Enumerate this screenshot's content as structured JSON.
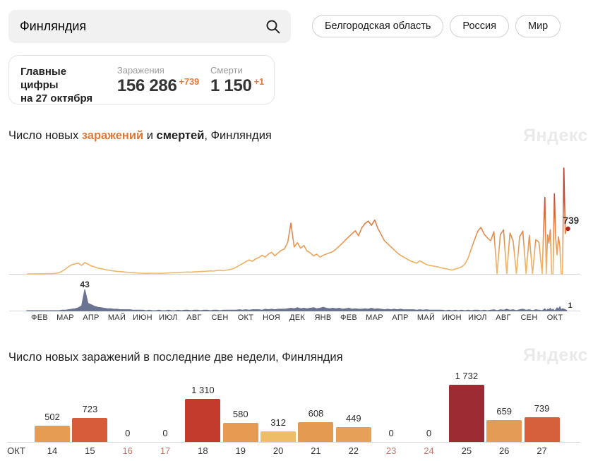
{
  "search": {
    "value": "Финляндия"
  },
  "region_buttons": [
    "Белгородская область",
    "Россия",
    "Мир"
  ],
  "summary_card": {
    "title_line1": "Главные цифры",
    "title_line2": "на 27 октября",
    "stats": [
      {
        "label": "Заражения",
        "value": "156 286",
        "delta": "+739"
      },
      {
        "label": "Смерти",
        "value": "1 150",
        "delta": "+1"
      }
    ]
  },
  "watermark": "Яндекс",
  "section1_title": {
    "prefix": "Число новых ",
    "highlight": "заражений",
    "conj": " и ",
    "bold": "смертей",
    "suffix": ", Финляндия"
  },
  "section2_title": "Число новых заражений в последние две недели, Финляндия",
  "colors": {
    "accent_orange": "#e8793a",
    "title_orange": "#de7a39",
    "deaths_series": "#6b7392",
    "axis_line": "#d6d6d6",
    "weekend_label": "#c4756a",
    "line_gradient_low": "#f0b96e",
    "line_gradient_mid": "#e07f45",
    "line_gradient_high": "#c0332b",
    "end_dot": "#b0261f"
  },
  "chart_data": [
    {
      "type": "line",
      "series_name": "Новые заражения за день",
      "title": "Число новых заражений и смертей, Финляндия",
      "x_months": [
        "ФЕВ",
        "МАР",
        "АПР",
        "МАЙ",
        "ИЮН",
        "ИЮЛ",
        "АВГ",
        "СЕН",
        "ОКТ",
        "НОЯ",
        "ДЕК",
        "ЯНВ",
        "ФЕВ",
        "МАР",
        "АПР",
        "МАЙ",
        "ИЮН",
        "ИЮЛ",
        "АВГ",
        "СЕН",
        "ОКТ"
      ],
      "ylim": [
        0,
        1800
      ],
      "last_point": {
        "value": 739,
        "label": "739"
      },
      "values": [
        0,
        0,
        0,
        1,
        1,
        2,
        3,
        4,
        6,
        10,
        20,
        45,
        80,
        120,
        150,
        165,
        175,
        140,
        185,
        160,
        130,
        115,
        95,
        85,
        75,
        65,
        55,
        48,
        42,
        38,
        33,
        28,
        24,
        20,
        16,
        12,
        10,
        9,
        10,
        12,
        11,
        9,
        10,
        13,
        16,
        18,
        21,
        24,
        26,
        29,
        31,
        28,
        33,
        36,
        39,
        42,
        45,
        50,
        46,
        55,
        60,
        52,
        63,
        70,
        85,
        110,
        140,
        170,
        200,
        230,
        205,
        245,
        265,
        305,
        275,
        325,
        355,
        295,
        345,
        385,
        410,
        520,
        830,
        440,
        510,
        420,
        465,
        375,
        345,
        295,
        325,
        275,
        305,
        325,
        345,
        365,
        405,
        455,
        505,
        560,
        610,
        660,
        705,
        625,
        755,
        825,
        865,
        795,
        880,
        745,
        645,
        545,
        495,
        445,
        395,
        345,
        305,
        275,
        245,
        215,
        195,
        175,
        215,
        185,
        155,
        140,
        130,
        120,
        110,
        95,
        85,
        75,
        65,
        78,
        95,
        115,
        160,
        260,
        410,
        560,
        700,
        760,
        650,
        590,
        540,
        690,
        0,
        640,
        720,
        0,
        670,
        540,
        0,
        610,
        700,
        0,
        630,
        0,
        560,
        520,
        0,
        690,
        1250,
        0,
        640,
        502,
        723,
        0,
        0,
        1310,
        580,
        312,
        608,
        449,
        0,
        0,
        1732,
        659,
        739
      ]
    },
    {
      "type": "area",
      "series_name": "Смерти за день",
      "ylim": [
        0,
        50
      ],
      "peak": {
        "value": 43,
        "label": "43"
      },
      "last_point": {
        "value": 1,
        "label": "1"
      },
      "values": [
        0,
        0,
        0,
        0,
        0,
        0,
        0,
        0,
        0,
        0,
        0,
        1,
        1,
        2,
        3,
        4,
        6,
        10,
        43,
        15,
        12,
        9,
        7,
        6,
        5,
        4,
        4,
        3,
        3,
        2,
        2,
        2,
        2,
        1,
        1,
        1,
        1,
        0,
        1,
        0,
        0,
        1,
        0,
        0,
        1,
        0,
        0,
        1,
        0,
        1,
        1,
        0,
        1,
        1,
        0,
        1,
        1,
        0,
        1,
        1,
        0,
        1,
        1,
        1,
        1,
        1,
        2,
        1,
        2,
        1,
        2,
        2,
        2,
        1,
        3,
        2,
        3,
        2,
        3,
        3,
        3,
        4,
        5,
        4,
        6,
        4,
        5,
        4,
        5,
        6,
        4,
        5,
        7,
        5,
        4,
        5,
        4,
        5,
        3,
        4,
        5,
        3,
        4,
        3,
        3,
        4,
        3,
        5,
        3,
        4,
        3,
        2,
        3,
        2,
        3,
        2,
        3,
        2,
        2,
        2,
        2,
        1,
        2,
        1,
        2,
        1,
        1,
        1,
        1,
        1,
        0,
        1,
        0,
        1,
        0,
        1,
        0,
        1,
        0,
        1,
        1,
        0,
        1,
        0,
        1,
        2,
        0,
        2,
        1,
        3,
        1,
        2,
        0,
        2,
        3,
        1,
        2,
        0,
        2,
        1,
        0,
        2,
        4,
        0,
        3,
        2,
        5,
        1,
        3,
        0,
        2,
        6,
        3,
        8,
        2,
        4,
        3,
        2,
        1
      ]
    },
    {
      "type": "bar",
      "series_name": "Новые заражения в последние две недели",
      "title": "Число новых заражений в последние две недели, Финляндия",
      "axis_prefix": "ОКТ",
      "categories": [
        "14",
        "15",
        "16",
        "17",
        "18",
        "19",
        "20",
        "21",
        "22",
        "23",
        "24",
        "25",
        "26",
        "27"
      ],
      "values": [
        502,
        723,
        0,
        0,
        1310,
        580,
        312,
        608,
        449,
        0,
        0,
        1732,
        659,
        739
      ],
      "weekend_indices": [
        2,
        3,
        9,
        10
      ],
      "bar_colors": [
        "#e79c54",
        "#d65c3a",
        "",
        "",
        "#c23b2d",
        "#e69a52",
        "#edbd68",
        "#e59a52",
        "#e6a058",
        "",
        "",
        "#9c2b33",
        "#e39b55",
        "#d6603c"
      ],
      "ylim": [
        0,
        1800
      ]
    }
  ]
}
